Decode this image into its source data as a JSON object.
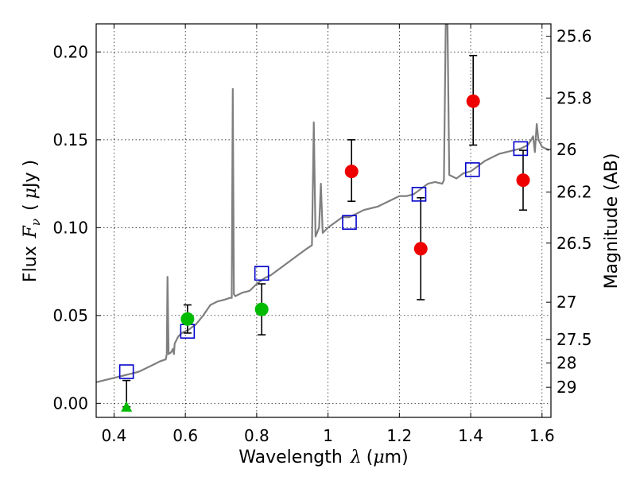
{
  "chart_data": {
    "type": "scatter",
    "x_label_text": "Wavelength",
    "x_label_symbol": "λ",
    "x_label_unit_open": "(",
    "x_label_unit_mu": "μ",
    "x_label_unit_rest": "m)",
    "y_label_text": "Flux",
    "y_label_symbol": "F",
    "y_label_subscript": "ν",
    "y_label_unit_open": "(",
    "y_label_unit_mu": "μ",
    "y_label_unit_rest": "Jy )",
    "y2_label": "Magnitude (AB)",
    "xlim": [
      0.35,
      1.625
    ],
    "ylim": [
      -0.008,
      0.216
    ],
    "x_ticks": [
      {
        "value": 0.4,
        "label": "0.4"
      },
      {
        "value": 0.6,
        "label": "0.6"
      },
      {
        "value": 0.8,
        "label": "0.8"
      },
      {
        "value": 1.0,
        "label": "1"
      },
      {
        "value": 1.2,
        "label": "1.2"
      },
      {
        "value": 1.4,
        "label": "1.4"
      },
      {
        "value": 1.6,
        "label": "1.6"
      }
    ],
    "y_ticks": [
      {
        "value": 0.0,
        "label": "0.00"
      },
      {
        "value": 0.05,
        "label": "0.05"
      },
      {
        "value": 0.1,
        "label": "0.10"
      },
      {
        "value": 0.15,
        "label": "0.15"
      },
      {
        "value": 0.2,
        "label": "0.20"
      }
    ],
    "magnitude_ticks": [
      "25.6",
      "25.8",
      "26",
      "26.2",
      "26.5",
      "27",
      "27.5",
      "28",
      "29"
    ],
    "grid": true,
    "series": [
      {
        "name": "model_spectrum",
        "kind": "line",
        "color": "#7f7f7f",
        "points": [
          [
            0.35,
            0.012
          ],
          [
            0.37,
            0.013
          ],
          [
            0.39,
            0.014
          ],
          [
            0.41,
            0.015
          ],
          [
            0.43,
            0.016
          ],
          [
            0.45,
            0.017
          ],
          [
            0.47,
            0.018
          ],
          [
            0.49,
            0.02
          ],
          [
            0.51,
            0.022
          ],
          [
            0.53,
            0.024
          ],
          [
            0.545,
            0.025
          ],
          [
            0.548,
            0.028
          ],
          [
            0.55,
            0.072
          ],
          [
            0.553,
            0.028
          ],
          [
            0.56,
            0.029
          ],
          [
            0.565,
            0.031
          ],
          [
            0.568,
            0.028
          ],
          [
            0.57,
            0.034
          ],
          [
            0.58,
            0.038
          ],
          [
            0.59,
            0.04
          ],
          [
            0.61,
            0.042
          ],
          [
            0.63,
            0.045
          ],
          [
            0.65,
            0.05
          ],
          [
            0.67,
            0.056
          ],
          [
            0.69,
            0.058
          ],
          [
            0.71,
            0.059
          ],
          [
            0.725,
            0.06
          ],
          [
            0.73,
            0.06
          ],
          [
            0.733,
            0.179
          ],
          [
            0.736,
            0.062
          ],
          [
            0.74,
            0.061
          ],
          [
            0.76,
            0.063
          ],
          [
            0.78,
            0.064
          ],
          [
            0.8,
            0.068
          ],
          [
            0.82,
            0.071
          ],
          [
            0.84,
            0.073
          ],
          [
            0.86,
            0.076
          ],
          [
            0.88,
            0.079
          ],
          [
            0.9,
            0.082
          ],
          [
            0.92,
            0.085
          ],
          [
            0.94,
            0.088
          ],
          [
            0.955,
            0.09
          ],
          [
            0.96,
            0.16
          ],
          [
            0.965,
            0.095
          ],
          [
            0.975,
            0.1
          ],
          [
            0.98,
            0.125
          ],
          [
            0.985,
            0.097
          ],
          [
            1.0,
            0.1
          ],
          [
            1.02,
            0.103
          ],
          [
            1.04,
            0.106
          ],
          [
            1.06,
            0.106
          ],
          [
            1.08,
            0.108
          ],
          [
            1.1,
            0.11
          ],
          [
            1.12,
            0.111
          ],
          [
            1.14,
            0.112
          ],
          [
            1.16,
            0.114
          ],
          [
            1.18,
            0.116
          ],
          [
            1.2,
            0.118
          ],
          [
            1.22,
            0.118
          ],
          [
            1.24,
            0.119
          ],
          [
            1.26,
            0.122
          ],
          [
            1.28,
            0.125
          ],
          [
            1.3,
            0.126
          ],
          [
            1.32,
            0.125
          ],
          [
            1.325,
            0.127
          ],
          [
            1.33,
            0.216
          ],
          [
            1.335,
            0.216
          ],
          [
            1.34,
            0.13
          ],
          [
            1.36,
            0.128
          ],
          [
            1.38,
            0.131
          ],
          [
            1.4,
            0.132
          ],
          [
            1.42,
            0.135
          ],
          [
            1.44,
            0.138
          ],
          [
            1.46,
            0.14
          ],
          [
            1.48,
            0.142
          ],
          [
            1.5,
            0.143
          ],
          [
            1.52,
            0.144
          ],
          [
            1.54,
            0.145
          ],
          [
            1.55,
            0.146
          ],
          [
            1.56,
            0.147
          ],
          [
            1.57,
            0.15
          ],
          [
            1.575,
            0.152
          ],
          [
            1.58,
            0.143
          ],
          [
            1.585,
            0.159
          ],
          [
            1.59,
            0.15
          ],
          [
            1.6,
            0.146
          ],
          [
            1.61,
            0.145
          ],
          [
            1.62,
            0.144
          ]
        ]
      },
      {
        "name": "model_photometry",
        "kind": "open_square",
        "color": "#0000cc",
        "points": [
          [
            0.435,
            0.018
          ],
          [
            0.606,
            0.041
          ],
          [
            0.814,
            0.074
          ],
          [
            1.06,
            0.103
          ],
          [
            1.255,
            0.119
          ],
          [
            1.405,
            0.133
          ],
          [
            1.54,
            0.145
          ]
        ]
      },
      {
        "name": "optical_detections",
        "kind": "filled_circle",
        "color": "#00bb00",
        "points": [
          {
            "x": 0.606,
            "y": 0.048,
            "err_low": 0.04,
            "err_high": 0.056
          },
          {
            "x": 0.814,
            "y": 0.0535,
            "err_low": 0.039,
            "err_high": 0.068
          }
        ]
      },
      {
        "name": "upper_limit",
        "kind": "filled_triangle",
        "color": "#00bb00",
        "points": [
          {
            "x": 0.435,
            "y": -0.002,
            "err_low": -0.002,
            "err_high": 0.013
          }
        ]
      },
      {
        "name": "nir_detections",
        "kind": "filled_circle",
        "color": "#ee0000",
        "points": [
          {
            "x": 1.066,
            "y": 0.132,
            "err_low": 0.115,
            "err_high": 0.15
          },
          {
            "x": 1.26,
            "y": 0.088,
            "err_low": 0.059,
            "err_high": 0.117
          },
          {
            "x": 1.407,
            "y": 0.172,
            "err_low": 0.147,
            "err_high": 0.198
          },
          {
            "x": 1.547,
            "y": 0.127,
            "err_low": 0.11,
            "err_high": 0.144
          }
        ]
      }
    ]
  }
}
